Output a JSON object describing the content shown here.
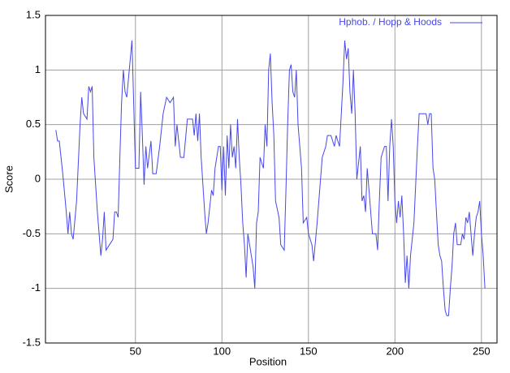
{
  "chart_data": {
    "type": "line",
    "x_label": "Position",
    "y_label": "Score",
    "x": [
      4,
      5,
      6,
      8,
      10,
      11,
      12,
      13,
      14,
      16,
      18,
      19,
      20,
      22,
      23,
      24,
      25,
      26,
      28,
      30,
      31,
      32,
      33,
      35,
      37,
      38,
      39,
      40,
      41,
      42,
      43,
      44,
      45,
      47,
      48,
      49,
      50,
      52,
      53,
      54,
      55,
      56,
      57,
      59,
      60,
      62,
      64,
      66,
      68,
      70,
      72,
      73,
      74,
      76,
      78,
      80,
      83,
      84,
      85,
      86,
      87,
      88,
      90,
      91,
      92,
      94,
      95,
      96,
      98,
      99,
      100,
      101,
      102,
      103,
      104,
      105,
      106,
      107,
      108,
      109,
      110,
      111,
      112,
      113,
      114,
      115,
      117,
      118,
      119,
      120,
      121,
      122,
      124,
      125,
      126,
      127,
      128,
      129,
      130,
      131,
      133,
      134,
      136,
      137,
      138,
      139,
      140,
      141,
      142,
      143,
      144,
      146,
      147,
      149,
      150,
      152,
      153,
      155,
      156,
      158,
      160,
      161,
      163,
      165,
      166,
      168,
      170,
      171,
      172,
      173,
      174,
      175,
      176,
      177,
      178,
      180,
      181,
      182,
      183,
      184,
      185,
      187,
      189,
      190,
      191,
      192,
      194,
      195,
      196,
      197,
      198,
      199,
      200,
      201,
      202,
      203,
      204,
      205,
      206,
      207,
      208,
      209,
      211,
      213,
      214,
      216,
      218,
      219,
      220,
      221,
      222,
      223,
      224,
      225,
      226,
      227,
      228,
      229,
      230,
      231,
      232,
      233,
      234,
      235,
      236,
      238,
      239,
      240,
      241,
      242,
      243,
      244,
      245,
      246,
      247,
      248,
      249,
      250,
      251,
      252
    ],
    "series": [
      {
        "name": "Hphob. / Hopp & Hoods",
        "color": "#4848e8",
        "values": [
          0.45,
          0.35,
          0.35,
          0.05,
          -0.3,
          -0.5,
          -0.3,
          -0.5,
          -0.55,
          -0.2,
          0.5,
          0.75,
          0.6,
          0.55,
          0.85,
          0.8,
          0.85,
          0.2,
          -0.3,
          -0.7,
          -0.55,
          -0.3,
          -0.65,
          -0.6,
          -0.55,
          -0.3,
          -0.3,
          -0.35,
          0.2,
          0.7,
          1.0,
          0.8,
          0.75,
          1.1,
          1.27,
          0.7,
          0.1,
          0.1,
          0.8,
          0.4,
          -0.05,
          0.3,
          0.1,
          0.35,
          0.05,
          0.05,
          0.3,
          0.6,
          0.75,
          0.7,
          0.75,
          0.3,
          0.5,
          0.2,
          0.2,
          0.55,
          0.55,
          0.4,
          0.6,
          0.35,
          0.6,
          0.2,
          -0.3,
          -0.5,
          -0.4,
          -0.1,
          -0.15,
          0.1,
          0.3,
          0.3,
          -0.1,
          0.3,
          -0.15,
          0.4,
          0.1,
          0.5,
          0.2,
          0.3,
          0.1,
          0.55,
          0.2,
          -0.05,
          -0.4,
          -0.6,
          -0.9,
          -0.5,
          -0.7,
          -0.8,
          -1.0,
          -0.4,
          -0.3,
          0.2,
          0.1,
          0.5,
          0.3,
          1.0,
          1.15,
          0.7,
          0.4,
          -0.2,
          -0.35,
          -0.6,
          -0.65,
          -0.1,
          0.5,
          1.0,
          1.05,
          0.8,
          0.75,
          1.0,
          0.5,
          0.1,
          -0.4,
          -0.35,
          -0.5,
          -0.6,
          -0.75,
          -0.4,
          -0.2,
          0.2,
          0.3,
          0.4,
          0.4,
          0.3,
          0.4,
          0.3,
          0.9,
          1.27,
          1.1,
          1.2,
          0.8,
          0.6,
          1.0,
          0.6,
          0.0,
          0.3,
          -0.2,
          -0.15,
          -0.3,
          0.1,
          -0.1,
          -0.5,
          -0.5,
          -0.65,
          -0.2,
          0.2,
          0.3,
          0.3,
          -0.2,
          0.3,
          0.55,
          0.3,
          -0.2,
          -0.4,
          -0.2,
          -0.35,
          -0.15,
          -0.5,
          -0.95,
          -0.7,
          -1.0,
          -0.7,
          -0.4,
          0.3,
          0.6,
          0.6,
          0.6,
          0.5,
          0.6,
          0.6,
          0.1,
          0.0,
          -0.3,
          -0.6,
          -0.7,
          -0.75,
          -1.0,
          -1.2,
          -1.25,
          -1.25,
          -1.0,
          -0.8,
          -0.5,
          -0.4,
          -0.6,
          -0.6,
          -0.5,
          -0.55,
          -0.35,
          -0.4,
          -0.3,
          -0.5,
          -0.7,
          -0.5,
          -0.35,
          -0.3,
          -0.2,
          -0.5,
          -0.7,
          -1.0
        ]
      }
    ],
    "xlim": [
      -2,
      259
    ],
    "xticks": [
      50,
      100,
      150,
      200,
      250
    ],
    "ylim": [
      -1.5,
      1.5
    ],
    "yticks": [
      -1.5,
      -1,
      -0.5,
      0,
      0.5,
      1,
      1.5
    ],
    "grid": true,
    "legend": "top-right"
  }
}
